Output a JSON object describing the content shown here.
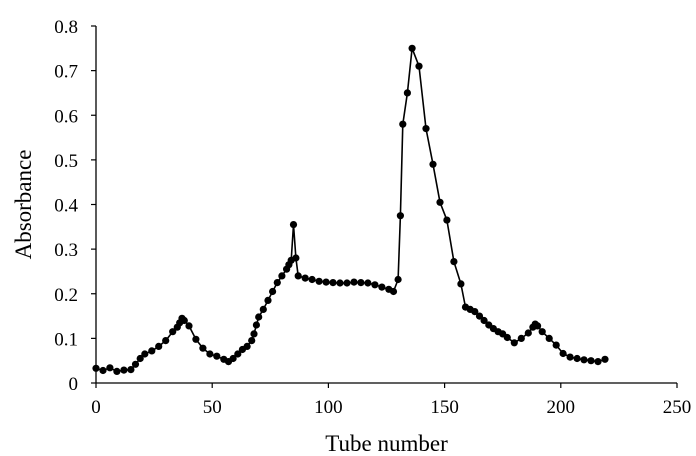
{
  "chart_data": {
    "type": "line",
    "xlabel": "Tube number",
    "ylabel": "Absorbance",
    "xlim": [
      0,
      250
    ],
    "ylim": [
      0,
      0.8
    ],
    "x_ticks": [
      0,
      50,
      100,
      150,
      200,
      250
    ],
    "y_ticks": [
      0,
      0.1,
      0.2,
      0.3,
      0.4,
      0.5,
      0.6,
      0.7,
      0.8
    ],
    "x_tick_labels": [
      "0",
      "50",
      "100",
      "150",
      "200",
      "250"
    ],
    "y_tick_labels": [
      "0",
      "0.1",
      "0.2",
      "0.3",
      "0.4",
      "0.5",
      "0.6",
      "0.7",
      "0.8"
    ],
    "grid": false,
    "legend": "none",
    "series": [
      {
        "color": "#000000",
        "marker": "circle",
        "x": [
          0,
          3,
          6,
          9,
          12,
          15,
          17,
          19,
          21,
          24,
          27,
          30,
          33,
          35,
          36,
          37,
          38,
          40,
          43,
          46,
          49,
          52,
          55,
          57,
          59,
          61,
          63,
          65,
          67,
          68,
          69,
          70,
          72,
          74,
          76,
          78,
          80,
          82,
          83,
          84,
          85,
          86,
          87,
          90,
          93,
          96,
          99,
          102,
          105,
          108,
          111,
          114,
          117,
          120,
          123,
          126,
          128,
          130,
          131,
          132,
          134,
          136,
          139,
          142,
          145,
          148,
          151,
          154,
          157,
          159,
          161,
          163,
          165,
          167,
          169,
          171,
          173,
          175,
          177,
          180,
          183,
          186,
          188,
          189,
          190,
          192,
          195,
          198,
          201,
          204,
          207,
          210,
          213,
          216,
          219
        ],
        "y": [
          0.033,
          0.028,
          0.034,
          0.026,
          0.029,
          0.03,
          0.042,
          0.055,
          0.065,
          0.072,
          0.082,
          0.095,
          0.115,
          0.125,
          0.135,
          0.145,
          0.14,
          0.128,
          0.098,
          0.078,
          0.065,
          0.06,
          0.053,
          0.048,
          0.055,
          0.065,
          0.075,
          0.082,
          0.095,
          0.11,
          0.13,
          0.148,
          0.165,
          0.185,
          0.205,
          0.225,
          0.24,
          0.255,
          0.265,
          0.275,
          0.355,
          0.28,
          0.24,
          0.235,
          0.232,
          0.228,
          0.226,
          0.225,
          0.224,
          0.224,
          0.226,
          0.225,
          0.224,
          0.22,
          0.215,
          0.21,
          0.205,
          0.232,
          0.375,
          0.58,
          0.65,
          0.75,
          0.71,
          0.57,
          0.49,
          0.405,
          0.365,
          0.272,
          0.222,
          0.17,
          0.165,
          0.16,
          0.15,
          0.14,
          0.13,
          0.122,
          0.115,
          0.11,
          0.102,
          0.09,
          0.1,
          0.112,
          0.125,
          0.132,
          0.128,
          0.115,
          0.1,
          0.085,
          0.066,
          0.058,
          0.055,
          0.052,
          0.05,
          0.048,
          0.053
        ]
      }
    ]
  }
}
